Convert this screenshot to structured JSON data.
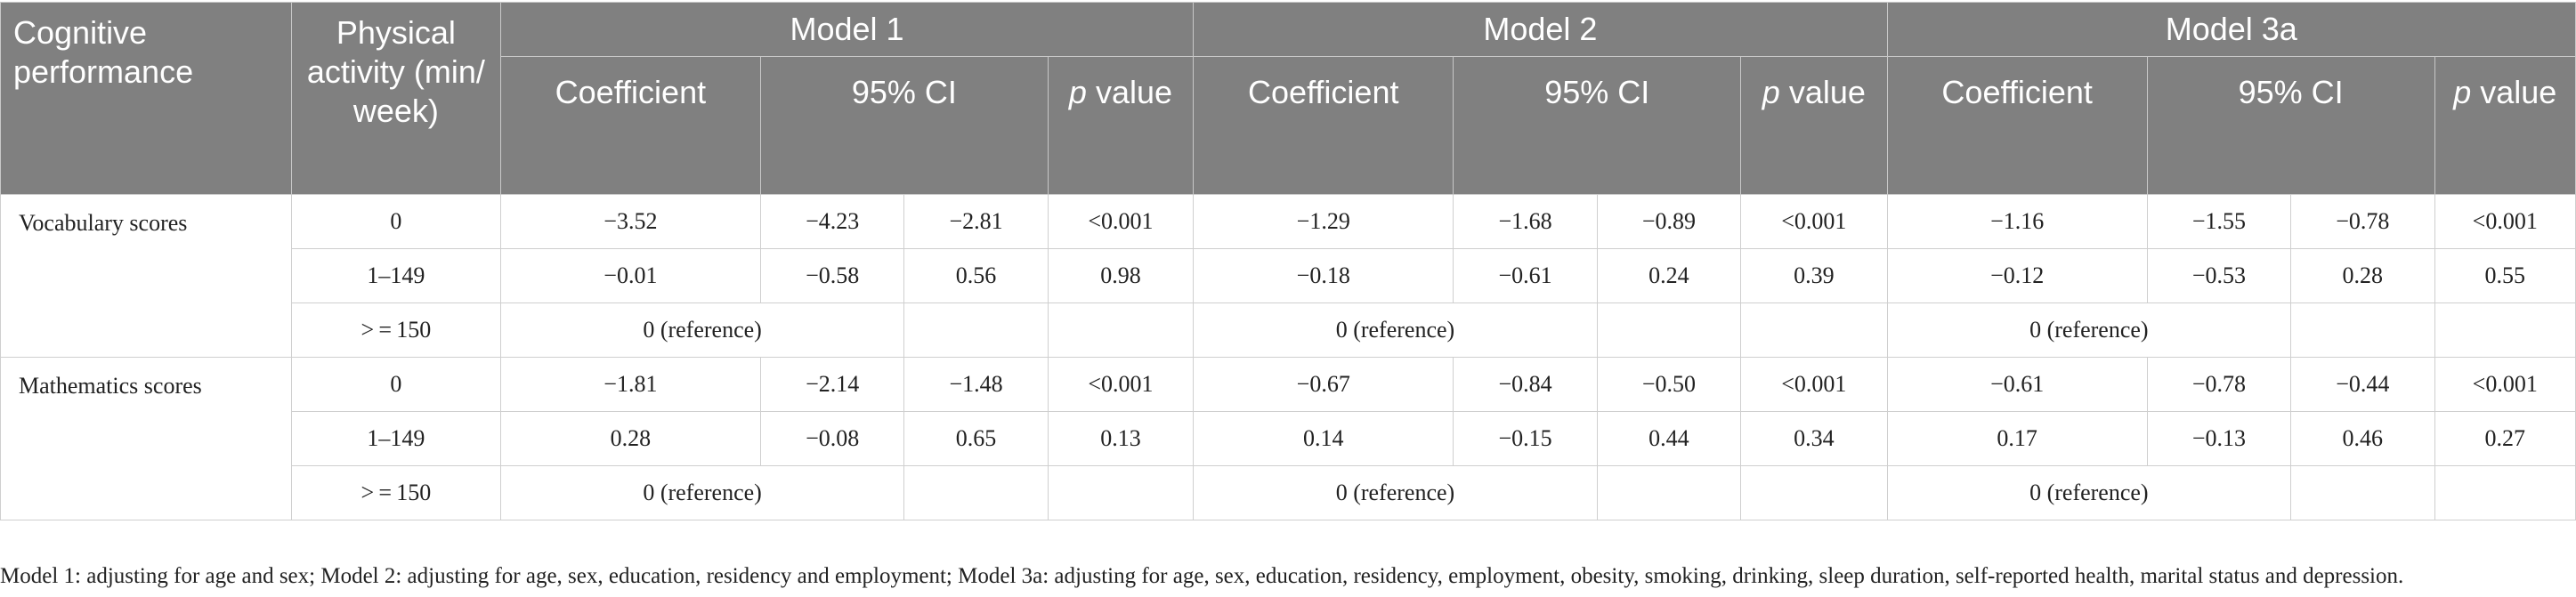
{
  "headers": {
    "outcome": "Cognitive performance",
    "activity": "Physical activity (min/ week)",
    "models": [
      "Model 1",
      "Model 2",
      "Model 3a"
    ],
    "coefficient": "Coefficient",
    "ci": "95% CI",
    "p_italic": "p",
    "p_rest": " value"
  },
  "groups": [
    {
      "outcome": "Vocabulary scores",
      "rows": [
        {
          "pa": "0",
          "cells": [
            [
              "−3.52",
              "−4.23",
              "−2.81",
              "<0.001"
            ],
            [
              "−1.29",
              "−1.68",
              "−0.89",
              "<0.001"
            ],
            [
              "−1.16",
              "−1.55",
              "−0.78",
              "<0.001"
            ]
          ]
        },
        {
          "pa": "1–149",
          "cells": [
            [
              "−0.01",
              "−0.58",
              "0.56",
              "0.98"
            ],
            [
              "−0.18",
              "−0.61",
              "0.24",
              "0.39"
            ],
            [
              "−0.12",
              "−0.53",
              "0.28",
              "0.55"
            ]
          ]
        },
        {
          "pa": "> = 150",
          "cells": [
            [
              "0 (reference)",
              "",
              "",
              ""
            ],
            [
              "0 (reference)",
              "",
              "",
              ""
            ],
            [
              "0 (reference)",
              "",
              "",
              ""
            ]
          ]
        }
      ]
    },
    {
      "outcome": "Mathematics scores",
      "rows": [
        {
          "pa": "0",
          "cells": [
            [
              "−1.81",
              "−2.14",
              "−1.48",
              "<0.001"
            ],
            [
              "−0.67",
              "−0.84",
              "−0.50",
              "<0.001"
            ],
            [
              "−0.61",
              "−0.78",
              "−0.44",
              "<0.001"
            ]
          ]
        },
        {
          "pa": "1–149",
          "cells": [
            [
              "0.28",
              "−0.08",
              "0.65",
              "0.13"
            ],
            [
              "0.14",
              "−0.15",
              "0.44",
              "0.34"
            ],
            [
              "0.17",
              "−0.13",
              "0.46",
              "0.27"
            ]
          ]
        },
        {
          "pa": "> = 150",
          "cells": [
            [
              "0 (reference)",
              "",
              "",
              ""
            ],
            [
              "0 (reference)",
              "",
              "",
              ""
            ],
            [
              "0 (reference)",
              "",
              "",
              ""
            ]
          ]
        }
      ]
    }
  ],
  "footnote": "Model 1: adjusting for age and sex; Model 2: adjusting for age, sex, education, residency and employment; Model 3a: adjusting for age, sex, education, residency, employment, obesity, smoking, drinking, sleep duration, self-reported health, marital status and depression."
}
